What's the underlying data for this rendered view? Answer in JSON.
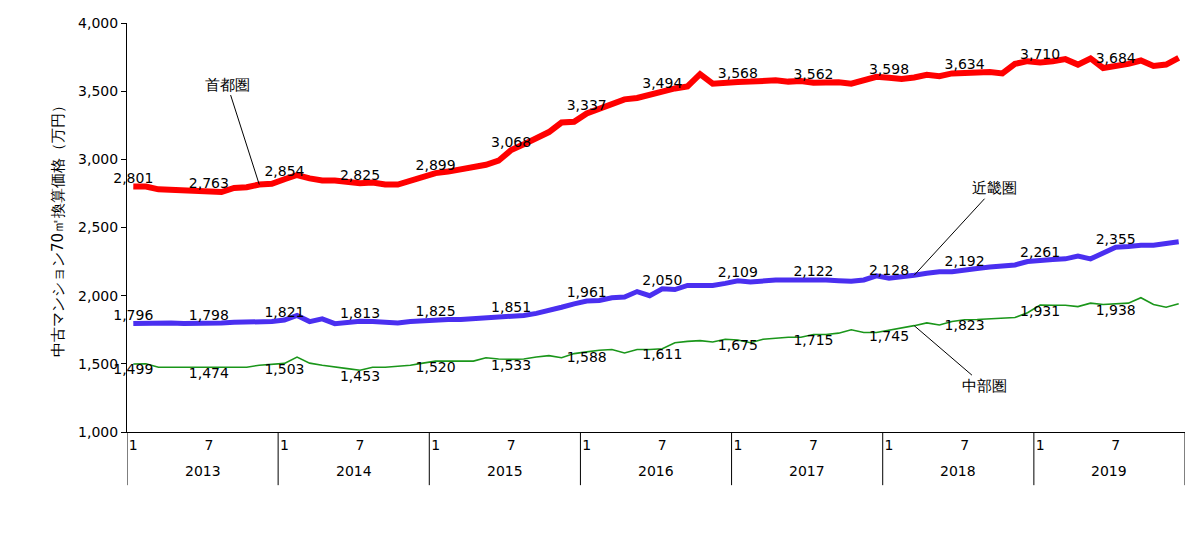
{
  "chart_data": {
    "type": "line",
    "y_label": "中古マンション70㎡換算価格（万円）",
    "categories": [
      "1",
      null,
      null,
      null,
      null,
      null,
      "7",
      null,
      null,
      null,
      null,
      null,
      "1",
      null,
      null,
      null,
      null,
      null,
      "7",
      null,
      null,
      null,
      null,
      null,
      "1",
      null,
      null,
      null,
      null,
      null,
      "7",
      null,
      null,
      null,
      null,
      null,
      "1",
      null,
      null,
      null,
      null,
      null,
      "7",
      null,
      null,
      null,
      null,
      null,
      "1",
      null,
      null,
      null,
      null,
      null,
      "7",
      null,
      null,
      null,
      null,
      null,
      "1",
      null,
      null,
      null,
      null,
      null,
      "7",
      null,
      null,
      null,
      null,
      null,
      "1",
      null,
      null,
      null,
      null,
      null,
      "7",
      null,
      null,
      null,
      null,
      null
    ],
    "x_groups": [
      "2013",
      "2014",
      "2015",
      "2016",
      "2017",
      "2018",
      "2019"
    ],
    "series": [
      {
        "name": "首都圏",
        "color": "#ff0000",
        "values": [
          2801,
          2800,
          2780,
          2775,
          2775,
          2765,
          2763,
          2760,
          2790,
          2795,
          2815,
          2820,
          2854,
          2885,
          2860,
          2845,
          2845,
          2835,
          2825,
          2830,
          2815,
          2815,
          2840,
          2870,
          2899,
          2910,
          2925,
          2945,
          2960,
          2990,
          3068,
          3110,
          3150,
          3200,
          3270,
          3275,
          3337,
          3370,
          3400,
          3440,
          3450,
          3475,
          3494,
          3520,
          3535,
          3625,
          3555,
          3565,
          3568,
          3570,
          3580,
          3580,
          3570,
          3575,
          3562,
          3565,
          3565,
          3555,
          3580,
          3605,
          3598,
          3590,
          3600,
          3620,
          3610,
          3630,
          3634,
          3640,
          3640,
          3630,
          3700,
          3720,
          3710,
          3720,
          3735,
          3695,
          3740,
          3670,
          3684,
          3700,
          3725,
          3685,
          3695,
          3745
        ],
        "value_labels": [
          "2,801",
          null,
          null,
          null,
          null,
          null,
          "2,763",
          null,
          null,
          null,
          null,
          null,
          "2,854",
          null,
          null,
          null,
          null,
          null,
          "2,825",
          null,
          null,
          null,
          null,
          null,
          "2,899",
          null,
          null,
          null,
          null,
          null,
          "3,068",
          null,
          null,
          null,
          null,
          null,
          "3,337",
          null,
          null,
          null,
          null,
          null,
          "3,494",
          null,
          null,
          null,
          null,
          null,
          "3,568",
          null,
          null,
          null,
          null,
          null,
          "3,562",
          null,
          null,
          null,
          null,
          null,
          "3,598",
          null,
          null,
          null,
          null,
          null,
          "3,634",
          null,
          null,
          null,
          null,
          null,
          "3,710",
          null,
          null,
          null,
          null,
          null,
          "3,684",
          null,
          null,
          null,
          null,
          null
        ]
      },
      {
        "name": "近畿圏",
        "color": "#4a2ff0",
        "values": [
          1796,
          1800,
          1800,
          1800,
          1795,
          1795,
          1798,
          1800,
          1805,
          1805,
          1805,
          1810,
          1821,
          1855,
          1810,
          1830,
          1795,
          1805,
          1813,
          1810,
          1805,
          1800,
          1810,
          1815,
          1825,
          1825,
          1825,
          1830,
          1835,
          1840,
          1851,
          1855,
          1870,
          1890,
          1915,
          1940,
          1961,
          1965,
          1985,
          1990,
          2030,
          2000,
          2050,
          2045,
          2075,
          2075,
          2075,
          2090,
          2109,
          2100,
          2110,
          2115,
          2115,
          2115,
          2122,
          2115,
          2110,
          2105,
          2115,
          2145,
          2128,
          2135,
          2150,
          2165,
          2175,
          2175,
          2192,
          2200,
          2210,
          2220,
          2225,
          2250,
          2261,
          2265,
          2270,
          2290,
          2270,
          2310,
          2355,
          2360,
          2370,
          2370,
          2380,
          2395
        ],
        "value_labels": [
          "1,796",
          null,
          null,
          null,
          null,
          null,
          "1,798",
          null,
          null,
          null,
          null,
          null,
          "1,821",
          null,
          null,
          null,
          null,
          null,
          "1,813",
          null,
          null,
          null,
          null,
          null,
          "1,825",
          null,
          null,
          null,
          null,
          null,
          "1,851",
          null,
          null,
          null,
          null,
          null,
          "1,961",
          null,
          null,
          null,
          null,
          null,
          "2,050",
          null,
          null,
          null,
          null,
          null,
          "2,109",
          null,
          null,
          null,
          null,
          null,
          "2,122",
          null,
          null,
          null,
          null,
          null,
          "2,128",
          null,
          null,
          null,
          null,
          null,
          "2,192",
          null,
          null,
          null,
          null,
          null,
          "2,261",
          null,
          null,
          null,
          null,
          null,
          "2,355",
          null,
          null,
          null,
          null,
          null
        ]
      },
      {
        "name": "中部圏",
        "color": "#1a961a",
        "values": [
          1499,
          1500,
          1475,
          1475,
          1475,
          1475,
          1474,
          1475,
          1475,
          1475,
          1490,
          1495,
          1503,
          1550,
          1505,
          1490,
          1480,
          1465,
          1453,
          1475,
          1475,
          1480,
          1490,
          1505,
          1520,
          1520,
          1520,
          1520,
          1545,
          1535,
          1533,
          1535,
          1550,
          1560,
          1545,
          1575,
          1588,
          1600,
          1605,
          1580,
          1605,
          1605,
          1611,
          1655,
          1665,
          1670,
          1660,
          1680,
          1675,
          1655,
          1680,
          1690,
          1695,
          1695,
          1715,
          1715,
          1725,
          1750,
          1730,
          1730,
          1745,
          1760,
          1780,
          1800,
          1785,
          1810,
          1823,
          1825,
          1830,
          1830,
          1840,
          1875,
          1931,
          1930,
          1930,
          1920,
          1945,
          1935,
          1938,
          1945,
          1985,
          1935,
          1915,
          1940
        ],
        "value_labels": [
          "1,499",
          null,
          null,
          null,
          null,
          null,
          "1,474",
          null,
          null,
          null,
          null,
          null,
          "1,503",
          null,
          null,
          null,
          null,
          null,
          "1,453",
          null,
          null,
          null,
          null,
          null,
          "1,520",
          null,
          null,
          null,
          null,
          null,
          "1,533",
          null,
          null,
          null,
          null,
          null,
          "1,588",
          null,
          null,
          null,
          null,
          null,
          "1,611",
          null,
          null,
          null,
          null,
          null,
          "1,675",
          null,
          null,
          null,
          null,
          null,
          "1,715",
          null,
          null,
          null,
          null,
          null,
          "1,745",
          null,
          null,
          null,
          null,
          null,
          "1,823",
          null,
          null,
          null,
          null,
          null,
          "1,931",
          null,
          null,
          null,
          null,
          null,
          "1,938",
          null,
          null,
          null,
          null,
          null
        ]
      }
    ],
    "ylim": [
      1000,
      4000
    ],
    "yticks": [
      {
        "value": 1000,
        "label": "1,000"
      },
      {
        "value": 1500,
        "label": "1,500"
      },
      {
        "value": 2000,
        "label": "2,000"
      },
      {
        "value": 2500,
        "label": "2,500"
      },
      {
        "value": 3000,
        "label": "3,000"
      },
      {
        "value": 3500,
        "label": "3,500"
      },
      {
        "value": 4000,
        "label": "4,000"
      }
    ],
    "grid": false,
    "data_labels": true
  }
}
